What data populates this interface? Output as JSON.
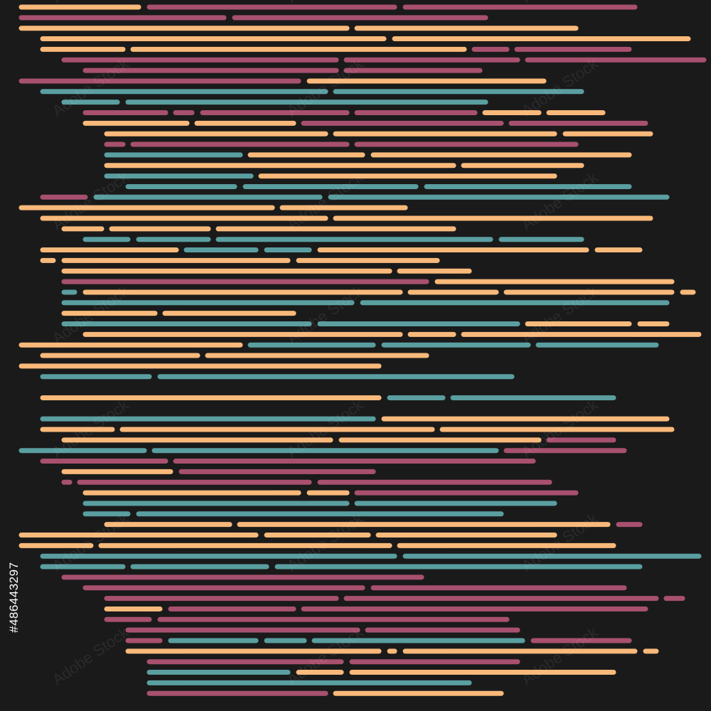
{
  "colors": {
    "background": "#1a1a1a",
    "orange": "#f9b97a",
    "pink": "#a8506f",
    "teal": "#5a9ea0"
  },
  "watermark": {
    "text": "Adobe Stock",
    "id": "#486443297"
  }
}
